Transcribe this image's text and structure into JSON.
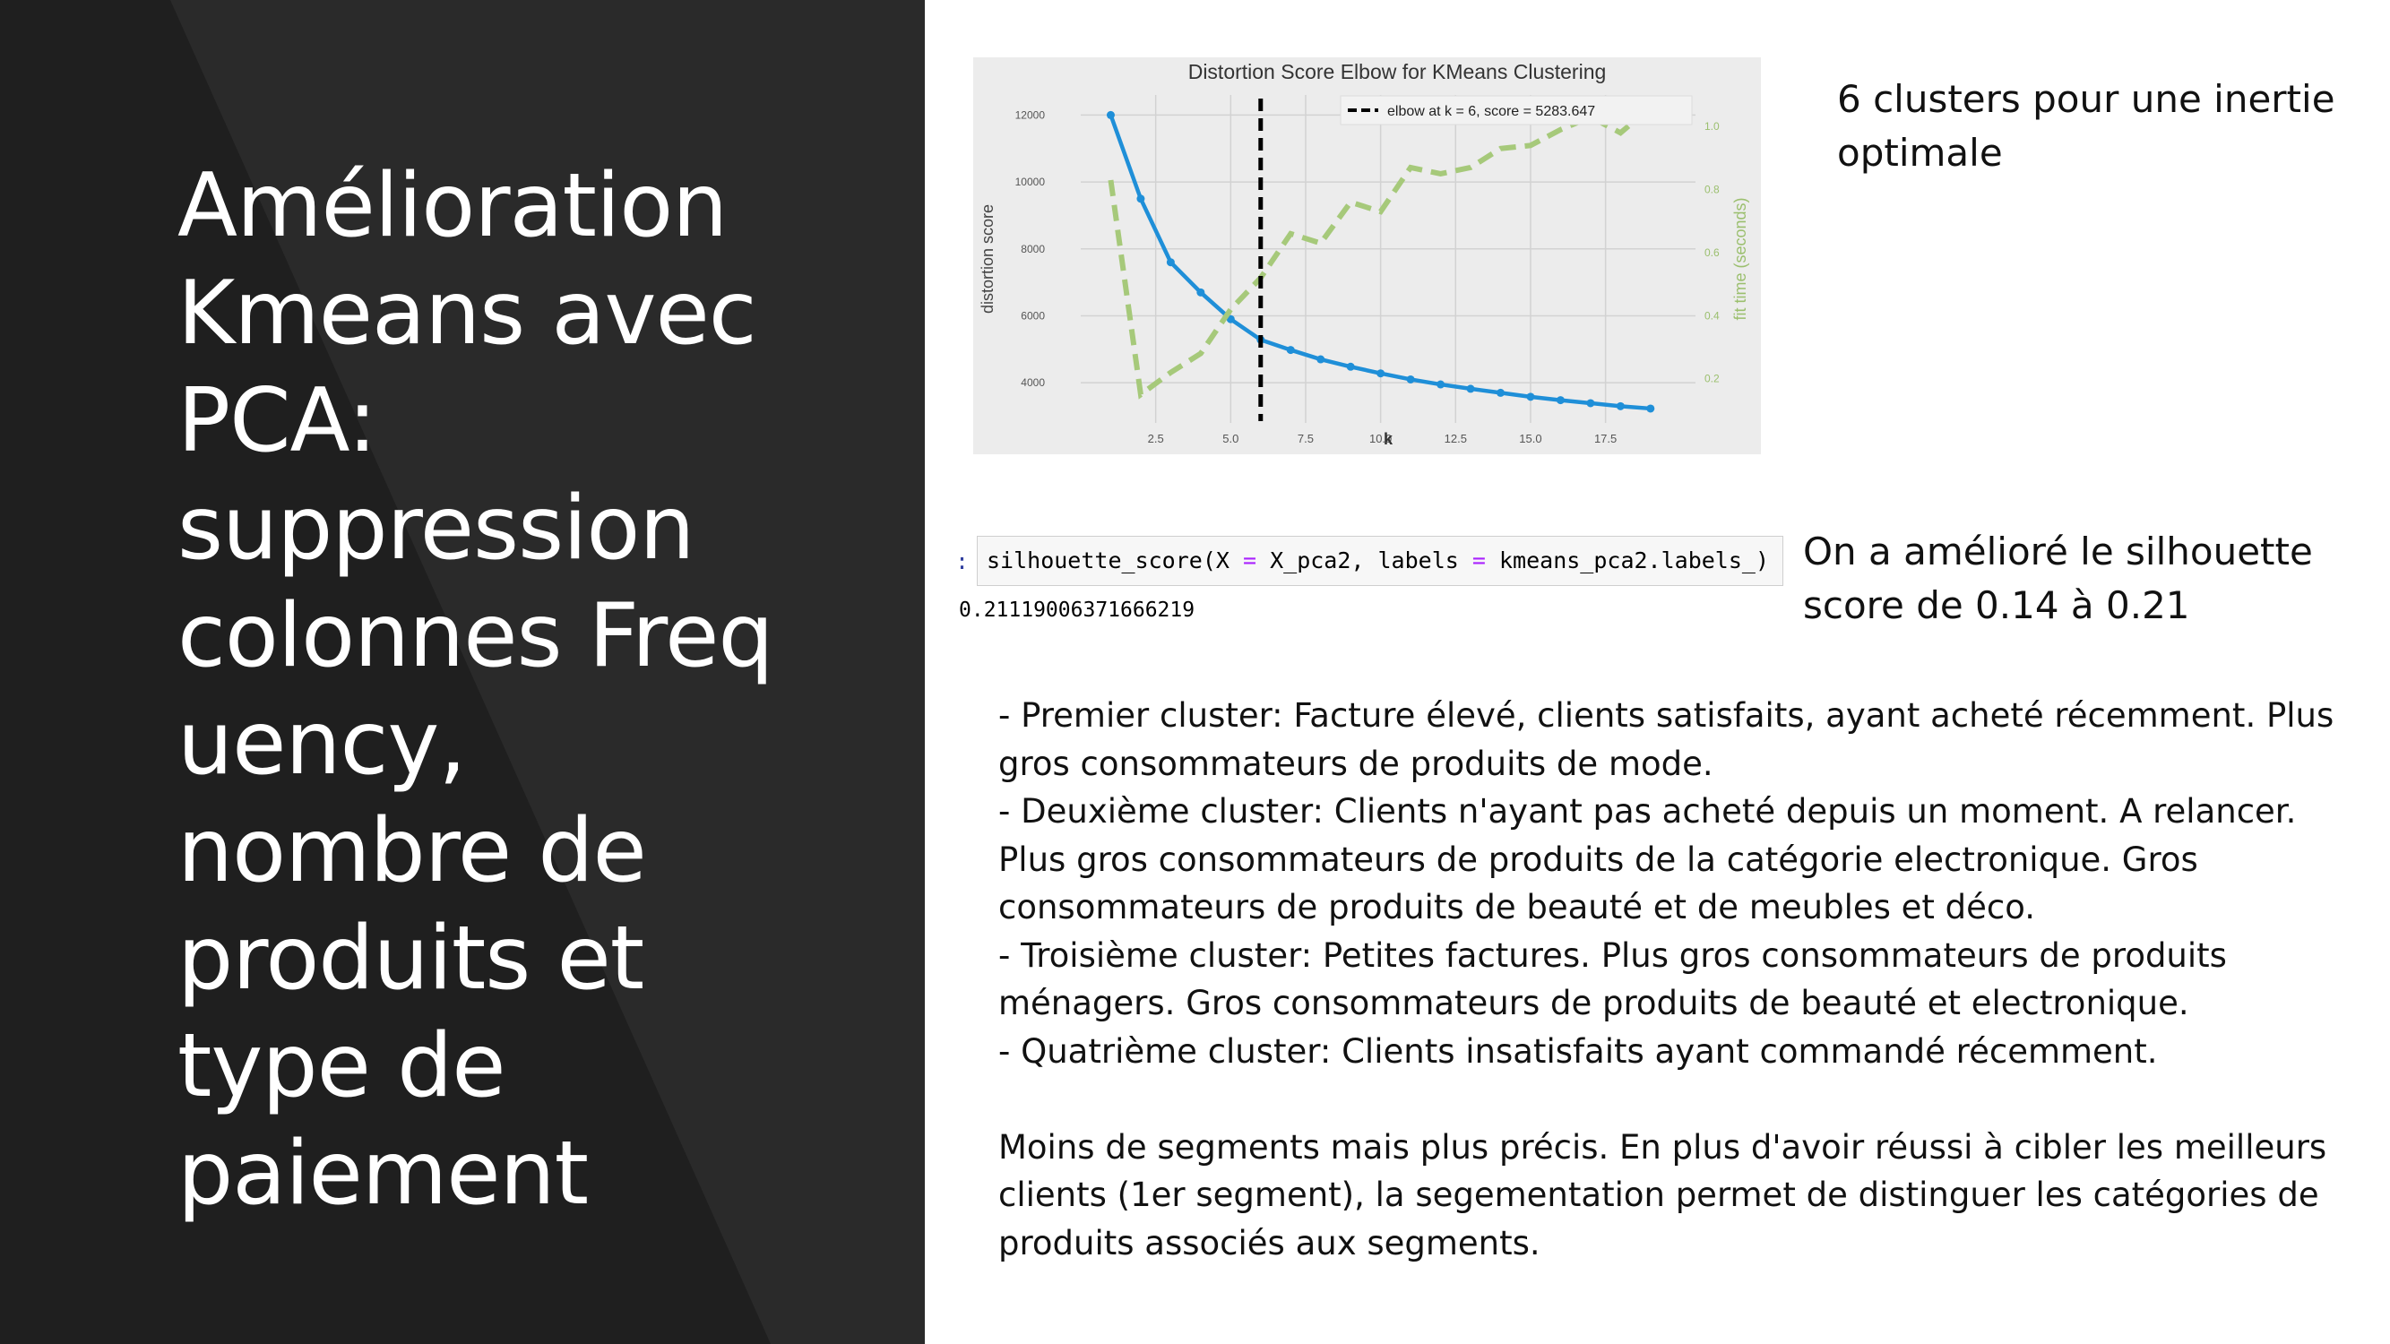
{
  "title": "Amélioration Kmeans avec PCA: suppression colonnes Freq uency, nombre de produits et type de paiement",
  "chart_data": {
    "type": "line",
    "title": "Distortion Score Elbow for KMeans Clustering",
    "xlabel": "k",
    "ylabel": "distortion score",
    "y2label": "fit time (seconds)",
    "xlim": [
      0,
      20.5
    ],
    "ylim": [
      2800,
      12600
    ],
    "y2lim": [
      0.06,
      1.1
    ],
    "x_ticks": [
      "2.5",
      "5.0",
      "7.5",
      "10.0",
      "12.5",
      "15.0",
      "17.5"
    ],
    "y_ticks": [
      "4000",
      "6000",
      "8000",
      "10000",
      "12000"
    ],
    "y2_ticks": [
      "0.2",
      "0.4",
      "0.6",
      "0.8",
      "1.0"
    ],
    "series": [
      {
        "axis": "left",
        "color": "#1f8fd8",
        "x": [
          1,
          2,
          3,
          4,
          5,
          6,
          7,
          8,
          9,
          10,
          11,
          12,
          13,
          14,
          15,
          16,
          17,
          18,
          19
        ],
        "values": [
          12000,
          9500,
          7600,
          6700,
          5900,
          5283.647,
          4980,
          4700,
          4480,
          4280,
          4100,
          3950,
          3820,
          3700,
          3580,
          3480,
          3390,
          3300,
          3230
        ]
      },
      {
        "axis": "right",
        "color": "#a6c97a",
        "x": [
          1,
          2,
          3,
          4,
          5,
          6,
          7,
          8,
          9,
          10,
          11,
          12,
          13,
          14,
          15,
          16,
          17,
          18,
          19
        ],
        "values": [
          0.83,
          0.15,
          0.22,
          0.28,
          0.42,
          0.52,
          0.66,
          0.63,
          0.76,
          0.73,
          0.87,
          0.85,
          0.87,
          0.93,
          0.94,
          0.99,
          1.03,
          0.98,
          1.06
        ]
      }
    ],
    "vline": {
      "x": 6,
      "color": "#000000"
    },
    "legend": {
      "text": "elbow at k = 6, score = 5283.647",
      "position": "top-right"
    }
  },
  "notes": {
    "clusters": "6 clusters pour une inertie optimale",
    "silhouette": "On a amélioré le silhouette score de 0.14 à 0.21"
  },
  "code": {
    "prompt": ":",
    "p1": "silhouette_score(X ",
    "eq1": "=",
    "p2": " X_pca2, labels ",
    "eq2": "=",
    "p3": " kmeans_pca2.labels_)",
    "output": "0.21119006371666219"
  },
  "bullets": [
    "- Premier cluster: Facture élevé, clients satisfaits, ayant acheté récemment. Plus gros consommateurs de produits de mode.",
    "- Deuxième cluster: Clients n'ayant pas acheté depuis un moment. A relancer. Plus gros consommateurs de produits de la catégorie electronique. Gros consommateurs de produits de beauté et de meubles et déco.",
    "- Troisième cluster:  Petites factures. Plus gros consommateurs de produits ménagers. Gros consommateurs de produits de beauté et electronique.",
    "- Quatrième cluster: Clients insatisfaits ayant commandé récemment."
  ],
  "conclusion": "Moins de segments mais plus précis. En plus d'avoir réussi à cibler les meilleurs clients (1er segment), la segementation permet de distinguer les catégories de produits associés aux segments."
}
